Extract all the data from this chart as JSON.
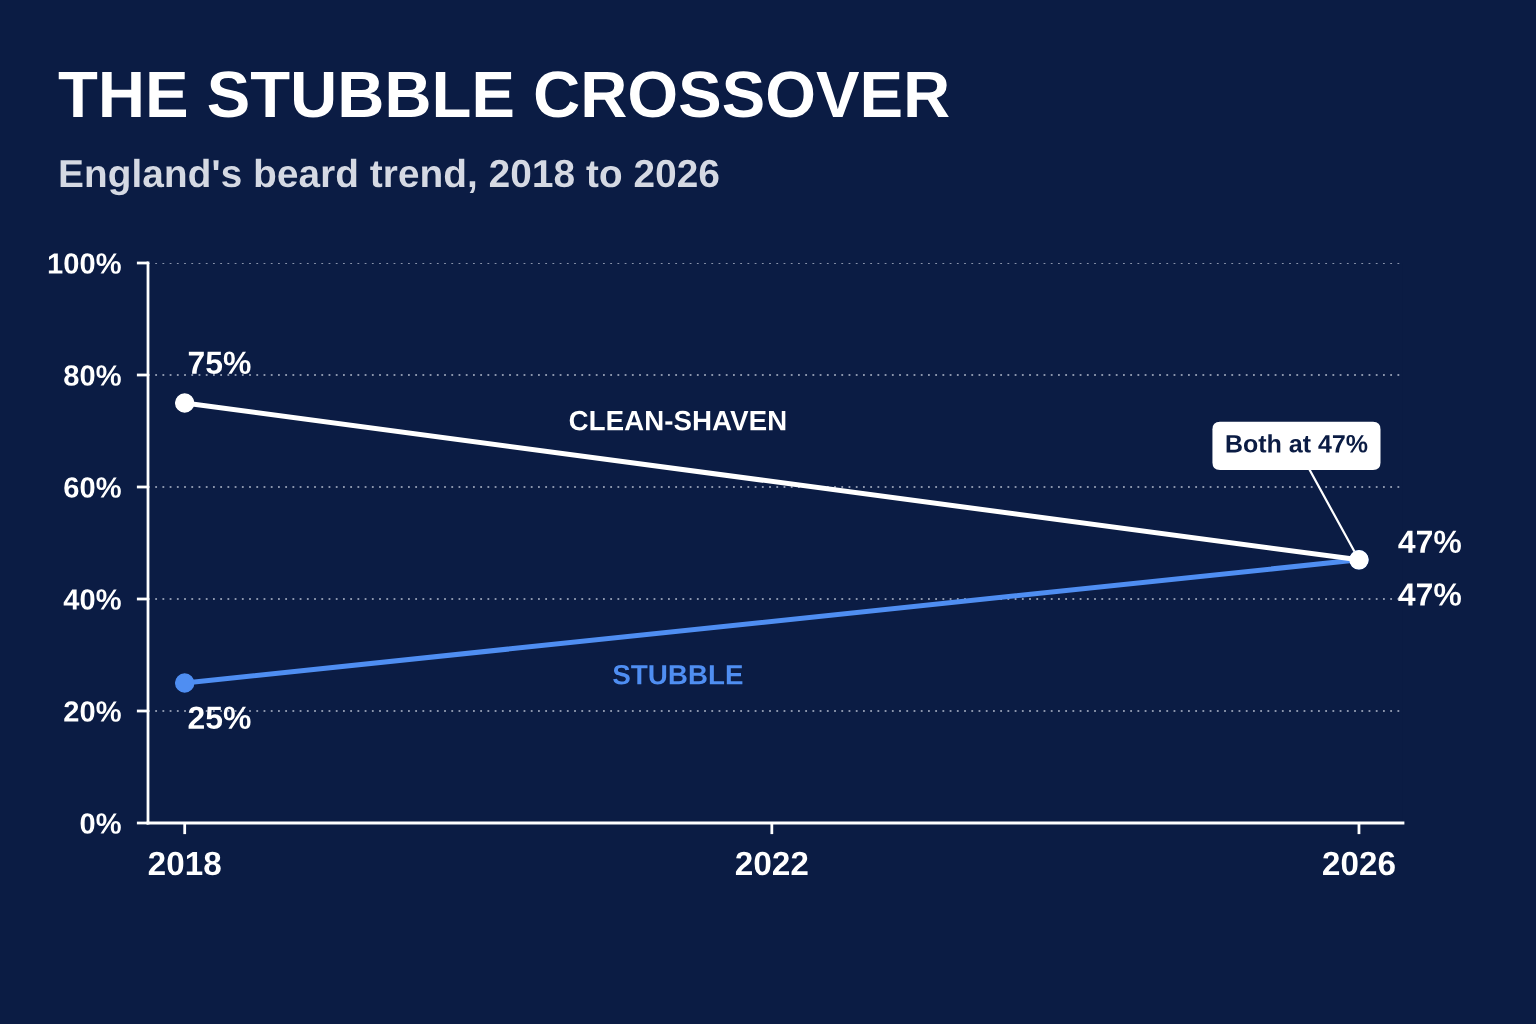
{
  "chart_data": {
    "type": "line",
    "title": "THE STUBBLE CROSSOVER",
    "subtitle": "England's beard trend, 2018 to 2026",
    "x": [
      2018,
      2026
    ],
    "xlim": [
      2017.75,
      2026.3
    ],
    "xticks": [
      2018,
      2022,
      2026
    ],
    "ylim": [
      0,
      100
    ],
    "yticks": [
      {
        "value": 0,
        "label": "0%"
      },
      {
        "value": 20,
        "label": "20%"
      },
      {
        "value": 40,
        "label": "40%"
      },
      {
        "value": 60,
        "label": "60%"
      },
      {
        "value": 80,
        "label": "80%"
      },
      {
        "value": 100,
        "label": "100%"
      }
    ],
    "grid": "y",
    "marker": "circle",
    "line_style": "solid",
    "series": [
      {
        "name": "CLEAN-SHAVEN",
        "color": "#ffffff",
        "values": [
          75,
          47
        ],
        "value_labels": [
          "75%",
          "47%"
        ]
      },
      {
        "name": "STUBBLE",
        "color": "#4f8ef2",
        "values": [
          25,
          47
        ],
        "value_labels": [
          "25%",
          "47%"
        ]
      }
    ],
    "annotations": [
      {
        "text": "Both at 47%",
        "x": 2026,
        "y": 47
      }
    ]
  }
}
